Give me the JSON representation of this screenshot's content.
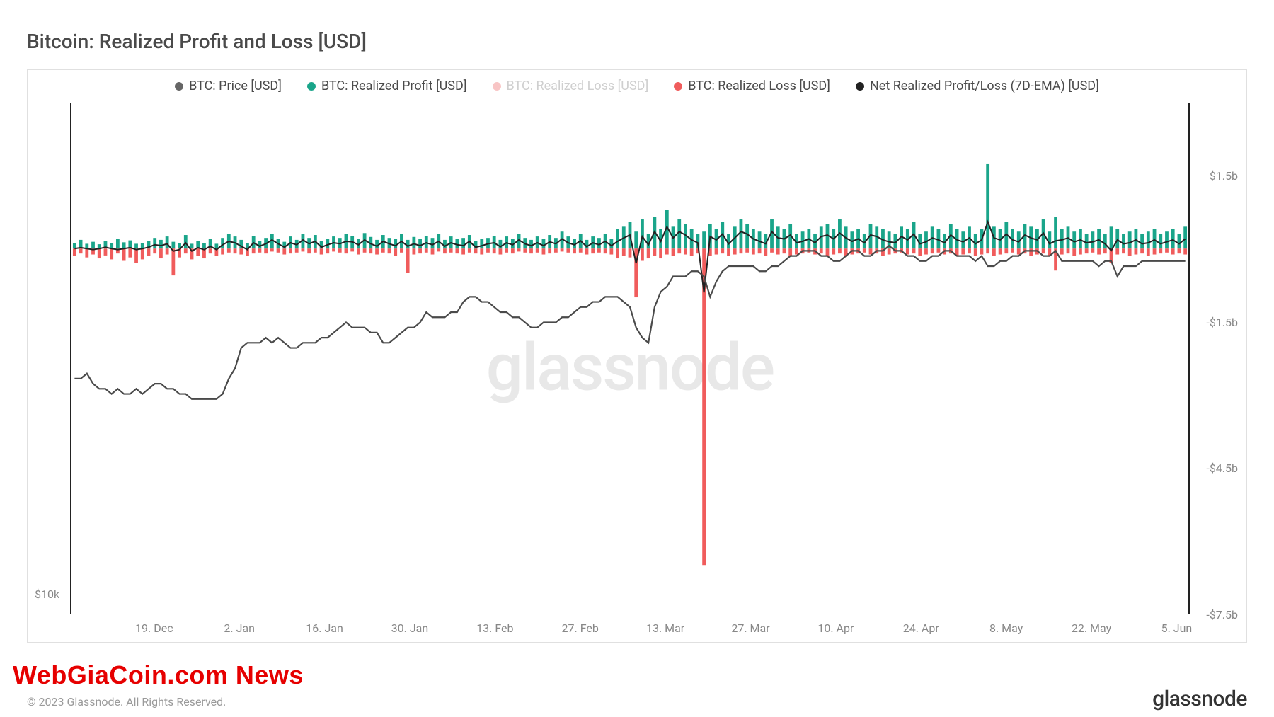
{
  "title": "Bitcoin: Realized Profit and Loss [USD]",
  "watermark": "glassnode",
  "overlay_news": "WebGiaCoin.com News",
  "copyright": "© 2023 Glassnode. All Rights Reserved.",
  "brand": "glassnode",
  "colors": {
    "title": "#4a4a4a",
    "frame_border": "#e0e0e0",
    "axis": "#222222",
    "tick_text": "#888888",
    "watermark": "#e8e8e8",
    "price_line": "#4a4a4a",
    "profit_bar": "#1aa58a",
    "loss_bar": "#f05c5c",
    "net_line": "#222222",
    "overlay_news": "#e60000"
  },
  "legend": [
    {
      "label": "BTC: Price [USD]",
      "color": "#666666",
      "dim": false
    },
    {
      "label": "BTC: Realized Profit [USD]",
      "color": "#1aa58a",
      "dim": false
    },
    {
      "label": "BTC: Realized Loss [USD]",
      "color": "#f05c5c",
      "dim": true
    },
    {
      "label": "BTC: Realized Loss [USD]",
      "color": "#f05c5c",
      "dim": false
    },
    {
      "label": "Net Realized Profit/Loss (7D-EMA) [USD]",
      "color": "#222222",
      "dim": false
    }
  ],
  "chart": {
    "type": "combo",
    "background_color": "#ffffff",
    "x_axis": {
      "ticks": [
        "19. Dec",
        "2. Jan",
        "16. Jan",
        "30. Jan",
        "13. Feb",
        "27. Feb",
        "13. Mar",
        "27. Mar",
        "10. Apr",
        "24. Apr",
        "8. May",
        "22. May",
        "5. Jun"
      ],
      "tick_positions_pct": [
        7.5,
        15.1,
        22.7,
        30.3,
        37.9,
        45.5,
        53.1,
        60.7,
        68.3,
        75.9,
        83.5,
        91.1,
        98.7
      ]
    },
    "y_axis_left": {
      "ticks": [
        {
          "label": "$10k",
          "pos_pct": 96
        }
      ]
    },
    "y_axis_right": {
      "range": [
        -7.5,
        3.0
      ],
      "zero_pos_pct": 28.57,
      "ticks": [
        {
          "label": "$1.5b",
          "pos_pct": 14.3
        },
        {
          "label": "-$1.5b",
          "pos_pct": 42.9
        },
        {
          "label": "-$4.5b",
          "pos_pct": 71.4
        },
        {
          "label": "-$7.5b",
          "pos_pct": 100
        }
      ]
    },
    "bar_width_pct": 0.35,
    "profit": [
      0.12,
      0.18,
      0.1,
      0.14,
      0.09,
      0.15,
      0.11,
      0.2,
      0.13,
      0.17,
      0.1,
      0.12,
      0.15,
      0.22,
      0.18,
      0.25,
      0.14,
      0.12,
      0.28,
      0.1,
      0.15,
      0.12,
      0.2,
      0.1,
      0.22,
      0.3,
      0.25,
      0.18,
      0.12,
      0.26,
      0.15,
      0.22,
      0.3,
      0.2,
      0.14,
      0.25,
      0.18,
      0.3,
      0.22,
      0.28,
      0.15,
      0.2,
      0.25,
      0.22,
      0.3,
      0.26,
      0.2,
      0.32,
      0.24,
      0.18,
      0.28,
      0.22,
      0.2,
      0.3,
      0.18,
      0.24,
      0.2,
      0.26,
      0.22,
      0.3,
      0.18,
      0.25,
      0.2,
      0.22,
      0.28,
      0.15,
      0.2,
      0.22,
      0.26,
      0.18,
      0.25,
      0.2,
      0.3,
      0.22,
      0.18,
      0.25,
      0.2,
      0.28,
      0.22,
      0.35,
      0.25,
      0.2,
      0.3,
      0.18,
      0.25,
      0.22,
      0.3,
      0.2,
      0.4,
      0.45,
      0.55,
      0.35,
      0.6,
      0.3,
      0.65,
      0.4,
      0.8,
      0.45,
      0.6,
      0.5,
      0.4,
      0.3,
      0.35,
      0.5,
      0.4,
      0.55,
      0.3,
      0.45,
      0.6,
      0.5,
      0.4,
      0.35,
      0.3,
      0.6,
      0.45,
      0.4,
      0.5,
      0.3,
      0.35,
      0.4,
      0.3,
      0.45,
      0.5,
      0.4,
      0.6,
      0.45,
      0.35,
      0.4,
      0.3,
      0.5,
      0.45,
      0.4,
      0.35,
      0.3,
      0.45,
      0.4,
      0.55,
      0.3,
      0.35,
      0.45,
      0.4,
      0.3,
      0.5,
      0.4,
      0.35,
      0.45,
      0.3,
      0.4,
      1.75,
      0.45,
      0.4,
      0.55,
      0.4,
      0.35,
      0.5,
      0.45,
      0.4,
      0.6,
      0.35,
      0.65,
      0.4,
      0.45,
      0.35,
      0.4,
      0.3,
      0.35,
      0.4,
      0.3,
      0.45,
      0.4,
      0.3,
      0.35,
      0.4,
      0.3,
      0.35,
      0.4,
      0.3,
      0.35,
      0.4,
      0.3,
      0.45
    ],
    "loss": [
      0.15,
      0.1,
      0.18,
      0.12,
      0.2,
      0.14,
      0.22,
      0.1,
      0.25,
      0.18,
      0.3,
      0.22,
      0.15,
      0.1,
      0.2,
      0.12,
      0.55,
      0.18,
      0.1,
      0.22,
      0.15,
      0.2,
      0.1,
      0.15,
      0.12,
      0.08,
      0.1,
      0.12,
      0.15,
      0.1,
      0.08,
      0.1,
      0.06,
      0.08,
      0.12,
      0.1,
      0.08,
      0.06,
      0.1,
      0.08,
      0.12,
      0.1,
      0.06,
      0.08,
      0.1,
      0.06,
      0.12,
      0.08,
      0.1,
      0.12,
      0.08,
      0.1,
      0.15,
      0.08,
      0.5,
      0.12,
      0.1,
      0.08,
      0.12,
      0.06,
      0.1,
      0.08,
      0.1,
      0.12,
      0.08,
      0.1,
      0.12,
      0.08,
      0.1,
      0.12,
      0.08,
      0.1,
      0.06,
      0.08,
      0.1,
      0.08,
      0.12,
      0.1,
      0.08,
      0.06,
      0.08,
      0.1,
      0.08,
      0.12,
      0.1,
      0.08,
      0.1,
      0.12,
      0.2,
      0.15,
      0.18,
      1.0,
      0.25,
      0.2,
      0.15,
      0.2,
      0.12,
      0.15,
      0.1,
      0.12,
      0.15,
      0.1,
      6.5,
      0.15,
      0.12,
      0.1,
      0.15,
      0.12,
      0.1,
      0.08,
      0.12,
      0.1,
      0.15,
      0.08,
      0.12,
      0.1,
      0.15,
      0.12,
      0.1,
      0.08,
      0.12,
      0.1,
      0.15,
      0.12,
      0.1,
      0.15,
      0.12,
      0.1,
      0.08,
      0.12,
      0.1,
      0.15,
      0.12,
      0.1,
      0.08,
      0.12,
      0.1,
      0.15,
      0.12,
      0.1,
      0.08,
      0.12,
      0.1,
      0.15,
      0.12,
      0.1,
      0.15,
      0.12,
      0.1,
      0.15,
      0.12,
      0.1,
      0.08,
      0.12,
      0.1,
      0.15,
      0.12,
      0.1,
      0.15,
      0.45,
      0.12,
      0.1,
      0.15,
      0.12,
      0.1,
      0.08,
      0.12,
      0.1,
      0.3,
      0.12,
      0.1,
      0.15,
      0.12,
      0.1,
      0.15,
      0.12,
      0.1,
      0.08,
      0.12,
      0.1,
      0.12
    ],
    "net_line": [
      0.0,
      0.02,
      0.0,
      -0.02,
      0.0,
      0.03,
      0.0,
      -0.02,
      0.0,
      0.02,
      -0.02,
      0.0,
      0.03,
      0.08,
      0.06,
      0.1,
      -0.05,
      -0.02,
      0.12,
      -0.05,
      0.02,
      -0.02,
      0.05,
      -0.02,
      0.08,
      0.15,
      0.12,
      0.05,
      -0.02,
      0.12,
      0.05,
      0.1,
      0.18,
      0.1,
      0.03,
      0.12,
      0.08,
      0.18,
      0.1,
      0.15,
      0.03,
      0.08,
      0.12,
      0.1,
      0.15,
      0.14,
      0.08,
      0.18,
      0.1,
      0.05,
      0.15,
      0.1,
      0.06,
      0.15,
      0.05,
      0.1,
      0.06,
      0.12,
      0.08,
      0.15,
      0.05,
      0.12,
      0.08,
      0.06,
      0.15,
      0.03,
      0.06,
      0.1,
      0.12,
      0.04,
      0.12,
      0.08,
      0.18,
      0.1,
      0.06,
      0.12,
      0.06,
      0.14,
      0.1,
      0.2,
      0.12,
      0.08,
      0.16,
      0.04,
      0.12,
      0.08,
      0.15,
      0.06,
      0.15,
      0.22,
      0.28,
      -0.3,
      0.25,
      0.08,
      0.35,
      0.15,
      0.45,
      0.22,
      0.35,
      0.28,
      0.18,
      0.12,
      -0.9,
      0.25,
      0.18,
      0.3,
      0.1,
      0.22,
      0.35,
      0.3,
      0.2,
      0.15,
      0.1,
      0.35,
      0.22,
      0.2,
      0.28,
      0.12,
      0.15,
      0.2,
      0.12,
      0.25,
      0.28,
      0.2,
      0.32,
      0.22,
      0.15,
      0.2,
      0.12,
      0.28,
      0.25,
      0.18,
      0.14,
      0.12,
      0.25,
      0.18,
      0.3,
      0.1,
      0.14,
      0.22,
      0.18,
      0.12,
      0.28,
      0.18,
      0.14,
      0.22,
      0.1,
      0.18,
      0.55,
      0.22,
      0.18,
      0.3,
      0.18,
      0.14,
      0.28,
      0.22,
      0.18,
      0.32,
      0.1,
      0.16,
      0.18,
      0.22,
      0.14,
      0.18,
      0.12,
      0.14,
      0.18,
      0.1,
      -0.04,
      0.18,
      0.1,
      0.12,
      0.18,
      0.1,
      0.12,
      0.18,
      0.1,
      0.14,
      0.18,
      0.1,
      0.2
    ],
    "price_line_pct": [
      54,
      54,
      53,
      55,
      56,
      56,
      57,
      56,
      57,
      57,
      56,
      57,
      56,
      55,
      55,
      56,
      56,
      57,
      57,
      58,
      58,
      58,
      58,
      58,
      57,
      54,
      52,
      48,
      47,
      47,
      47,
      46,
      47,
      46,
      47,
      48,
      48,
      47,
      47,
      47,
      46,
      46,
      45,
      44,
      43,
      44,
      44,
      44,
      45,
      45,
      47,
      47,
      46,
      45,
      44,
      44,
      43,
      41,
      42,
      42,
      42,
      41,
      41,
      39,
      38,
      38,
      39,
      39,
      40,
      41,
      41,
      42,
      42,
      43,
      44,
      44,
      43,
      43,
      43,
      42,
      42,
      41,
      40,
      40,
      39,
      39,
      38,
      38,
      38,
      39,
      40,
      44,
      46,
      47,
      40,
      37,
      36,
      34,
      34,
      34,
      33,
      33,
      34,
      38,
      35,
      33,
      32,
      32,
      32,
      32,
      32,
      33,
      33,
      32,
      32,
      31,
      30,
      30,
      29,
      29,
      29,
      30,
      30,
      31,
      31,
      30,
      29,
      29,
      30,
      30,
      29,
      29,
      28,
      29,
      29,
      30,
      30,
      31,
      31,
      30,
      30,
      29,
      29,
      30,
      30,
      30,
      31,
      30,
      32,
      32,
      31,
      31,
      30,
      30,
      29,
      29,
      29,
      30,
      30,
      29,
      31,
      31,
      31,
      31,
      31,
      31,
      32,
      31,
      31,
      34,
      32,
      32,
      32,
      31,
      31,
      31,
      31,
      31,
      31,
      31,
      31
    ]
  }
}
